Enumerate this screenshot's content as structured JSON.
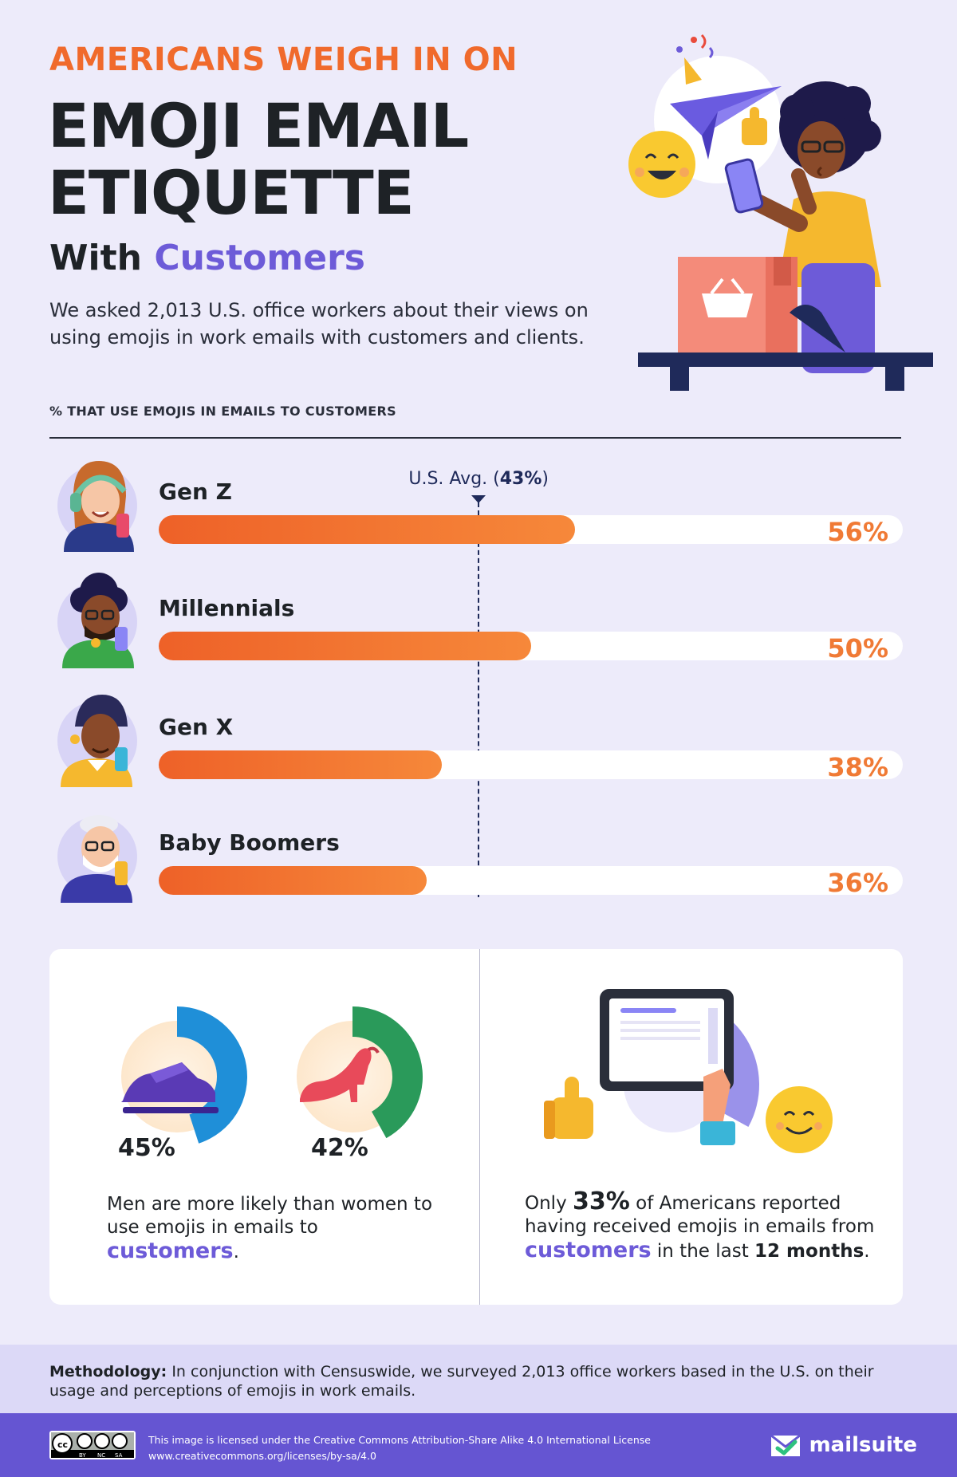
{
  "header": {
    "kicker": "AMERICANS WEIGH IN ON",
    "title_line1": "EMOJI EMAIL",
    "title_line2": "ETIQUETTE",
    "subtitle_prefix": "With",
    "subtitle_accent": "Customers",
    "intro": "We asked 2,013 U.S. office workers about their views on using emojis in work emails with customers and clients."
  },
  "chart_data": {
    "type": "bar",
    "orientation": "horizontal",
    "title": "% THAT USE EMOJIS IN EMAILS TO CUSTOMERS",
    "categories": [
      "Gen Z",
      "Millennials",
      "Gen X",
      "Baby Boomers"
    ],
    "values": [
      56,
      50,
      38,
      36
    ],
    "value_labels": [
      "56%",
      "50%",
      "38%",
      "36%"
    ],
    "xlim": [
      0,
      100
    ],
    "reference_line": {
      "label_prefix": "U.S.  Avg. (",
      "label_value": "43%",
      "label_suffix": ")",
      "value": 43
    },
    "bar_color": "#f06a2c",
    "grid": false
  },
  "gender": {
    "men_pct": "45%",
    "men_value": 45,
    "women_pct": "42%",
    "women_value": 42,
    "text_line1": "Men are more likely than women to",
    "text_line2_prefix": "use emojis in emails to",
    "text_line2_accent": "customers",
    "text_line2_suffix": "."
  },
  "received": {
    "value": 33,
    "pre": "Only",
    "pct": "33%",
    "line1_post": "of Americans reported",
    "line2": "having received emojis in emails from",
    "line3_accent": "customers",
    "line3_mid": "in the last",
    "line3_bold": "12 months",
    "line3_end": "."
  },
  "methodology": {
    "label": "Methodology:",
    "text": "In conjunction with Censuswide, we surveyed 2,013 office workers based in the U.S. on their usage and perceptions of emojis in work emails."
  },
  "footer": {
    "license_line1": "This image is licensed under the Creative Commons Attribution-Share Alike 4.0 International License",
    "license_line2": "www.creativecommons.org/licenses/by-sa/4.0",
    "cc_labels": [
      "BY",
      "NC",
      "SA"
    ],
    "brand": "mailsuite"
  },
  "colors": {
    "accent_orange": "#f06a2c",
    "accent_purple": "#6d5bd8",
    "background": "#edebfa",
    "footer": "#6555d2"
  },
  "icons": [
    "smile-emoji-icon",
    "paper-plane-icon",
    "thumbs-up-icon",
    "party-popper-icon",
    "shopping-basket-icon",
    "shoe-icon",
    "high-heel-icon",
    "tablet-icon",
    "creative-commons-icon",
    "mailsuite-logo-icon"
  ]
}
